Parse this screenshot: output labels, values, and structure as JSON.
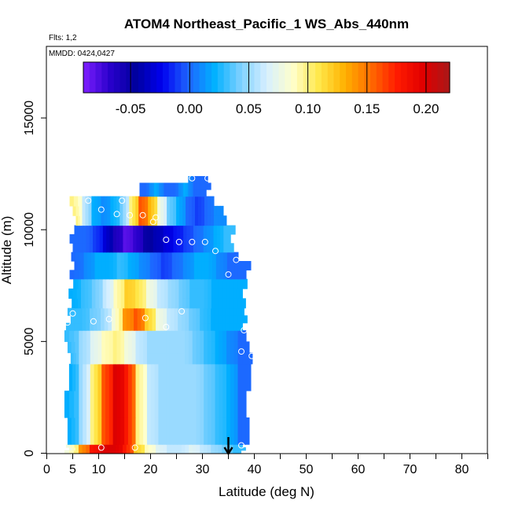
{
  "chart_data": {
    "type": "heatmap",
    "title": "ATOM4 Northeast_Pacific_1 WS_Abs_440nm",
    "flights_note": "Flts: 1,2",
    "dates_note": "MMDD: 0424,0427",
    "xlabel": "Latitude (deg N)",
    "ylabel": "Altitude (m)",
    "xlim": [
      0,
      85
    ],
    "ylim": [
      0,
      18000
    ],
    "x_ticks": [
      "0",
      "5",
      "10",
      "20",
      "30",
      "40",
      "50",
      "60",
      "70",
      "80"
    ],
    "x_tick_values": [
      0,
      5,
      10,
      20,
      30,
      40,
      50,
      60,
      70,
      80
    ],
    "y_ticks": [
      "0",
      "5000",
      "10000",
      "15000"
    ],
    "y_tick_values": [
      0,
      5000,
      10000,
      15000
    ],
    "colorbar": {
      "range": [
        -0.09,
        0.22
      ],
      "ticks": [
        "-0.05",
        "0.00",
        "0.05",
        "0.10",
        "0.15",
        "0.20"
      ],
      "tick_values": [
        -0.05,
        0.0,
        0.05,
        0.1,
        0.15,
        0.2
      ],
      "colors": [
        "#7f1fff",
        "#2a00cc",
        "#00009e",
        "#0000ee",
        "#1e64ff",
        "#00b0ff",
        "#7cd0ff",
        "#d6efff",
        "#ffffcc",
        "#ffe84a",
        "#ffb000",
        "#ff6a00",
        "#ff1a00",
        "#e00000",
        "#a81818"
      ]
    },
    "column_envelope": {
      "lat": [
        3.5,
        4,
        5,
        5.5,
        6,
        7,
        8,
        9,
        10,
        11,
        12,
        13,
        14,
        15,
        16,
        17,
        18,
        19,
        20,
        21,
        22,
        23,
        24,
        25,
        26,
        27,
        28,
        29,
        30,
        31,
        32,
        33,
        34,
        35,
        36,
        37,
        38,
        39,
        40
      ],
      "top": [
        500,
        6000,
        11500,
        11500,
        11500,
        11500,
        11500,
        11500,
        11500,
        11500,
        11500,
        11500,
        11500,
        11500,
        11500,
        11500,
        12000,
        12000,
        12000,
        12000,
        12000,
        12000,
        12000,
        12000,
        12000,
        12000,
        12400,
        12400,
        12400,
        12400,
        11500,
        10800,
        10500,
        10000,
        9500,
        9000,
        8500,
        8000,
        4500
      ]
    },
    "layers": [
      {
        "alt": [
          0,
          400
        ],
        "lat": [
          4,
          38
        ],
        "values": [
          0.08,
          0.14,
          0.18,
          0.2,
          0.2,
          0.18,
          0.12,
          0.09,
          0.07,
          0.06,
          0.06,
          0.07,
          0.06,
          0.05,
          0.04,
          0.03
        ]
      },
      {
        "alt": [
          400,
          4000
        ],
        "lat": [
          4,
          39
        ],
        "values": [
          0.02,
          0.05,
          0.1,
          0.16,
          0.2,
          0.18,
          0.1,
          0.06,
          0.05,
          0.05,
          0.05,
          0.05,
          0.04,
          0.03,
          0.02,
          0.0
        ]
      },
      {
        "alt": [
          4000,
          5500
        ],
        "lat": [
          4,
          39
        ],
        "values": [
          0.03,
          0.05,
          0.07,
          0.09,
          0.1,
          0.08,
          0.06,
          0.05,
          0.05,
          0.05,
          0.05,
          0.04,
          0.03,
          0.02,
          0.01,
          0.0
        ]
      },
      {
        "alt": [
          5500,
          6500
        ],
        "lat": [
          4,
          38
        ],
        "values": [
          0.03,
          0.03,
          0.04,
          0.05,
          0.08,
          0.14,
          0.16,
          0.12,
          0.08,
          0.06,
          0.05,
          0.04,
          0.03,
          0.02,
          0.02,
          0.02
        ]
      },
      {
        "alt": [
          6500,
          7800
        ],
        "lat": [
          4.5,
          38
        ],
        "values": [
          0.02,
          0.03,
          0.04,
          0.06,
          0.09,
          0.12,
          0.11,
          0.08,
          0.06,
          0.05,
          0.04,
          0.03,
          0.03,
          0.02,
          0.02,
          0.02
        ]
      },
      {
        "alt": [
          7800,
          9000
        ],
        "lat": [
          5,
          39
        ],
        "values": [
          0.0,
          0.01,
          0.02,
          0.02,
          0.03,
          0.02,
          0.01,
          0.0,
          -0.01,
          0.0,
          0.01,
          0.02,
          0.02,
          0.01,
          0.0,
          0.0
        ]
      },
      {
        "alt": [
          9000,
          10200
        ],
        "lat": [
          5,
          36
        ],
        "values": [
          0.0,
          0.0,
          -0.01,
          -0.03,
          -0.06,
          -0.08,
          -0.07,
          -0.05,
          -0.04,
          -0.03,
          -0.02,
          -0.01,
          0.0,
          0.01,
          0.02,
          0.03
        ]
      },
      {
        "alt": [
          10200,
          11500
        ],
        "lat": [
          5,
          34
        ],
        "values": [
          0.1,
          0.06,
          0.02,
          0.01,
          0.02,
          0.04,
          0.1,
          0.16,
          0.13,
          0.08,
          0.04,
          0.02,
          0.0,
          -0.01,
          0.0,
          0.01
        ]
      },
      {
        "alt": [
          11500,
          12400
        ],
        "lat": [
          16,
          31
        ],
        "values": [
          0.02,
          0.01,
          0.0,
          0.0,
          0.01,
          0.02,
          0.01,
          0.0,
          0.0,
          0.0,
          0.01,
          0.02,
          0.01,
          0.0,
          0.0,
          0.0
        ]
      }
    ],
    "sample_points": [
      {
        "lat": 8,
        "alt": 11300
      },
      {
        "lat": 10.5,
        "alt": 10900
      },
      {
        "lat": 13.5,
        "alt": 10700
      },
      {
        "lat": 14.5,
        "alt": 11300
      },
      {
        "lat": 16,
        "alt": 10650
      },
      {
        "lat": 18.5,
        "alt": 10650
      },
      {
        "lat": 21,
        "alt": 10550
      },
      {
        "lat": 20.5,
        "alt": 10350
      },
      {
        "lat": 23,
        "alt": 9550
      },
      {
        "lat": 25.5,
        "alt": 9450
      },
      {
        "lat": 28,
        "alt": 9450
      },
      {
        "lat": 30.5,
        "alt": 9450
      },
      {
        "lat": 32.5,
        "alt": 9050
      },
      {
        "lat": 36.5,
        "alt": 8650
      },
      {
        "lat": 35,
        "alt": 8000
      },
      {
        "lat": 28,
        "alt": 12300
      },
      {
        "lat": 31,
        "alt": 12300
      },
      {
        "lat": 5,
        "alt": 6250
      },
      {
        "lat": 4,
        "alt": 5850
      },
      {
        "lat": 9,
        "alt": 5900
      },
      {
        "lat": 12,
        "alt": 6000
      },
      {
        "lat": 19,
        "alt": 6050
      },
      {
        "lat": 23,
        "alt": 5650
      },
      {
        "lat": 26,
        "alt": 6350
      },
      {
        "lat": 38,
        "alt": 5500
      },
      {
        "lat": 37.5,
        "alt": 4550
      },
      {
        "lat": 39.5,
        "alt": 4350
      },
      {
        "lat": 10.5,
        "alt": 250
      },
      {
        "lat": 17,
        "alt": 250
      },
      {
        "lat": 37.5,
        "alt": 350
      }
    ],
    "arrow_lat": 35,
    "grid": false
  }
}
